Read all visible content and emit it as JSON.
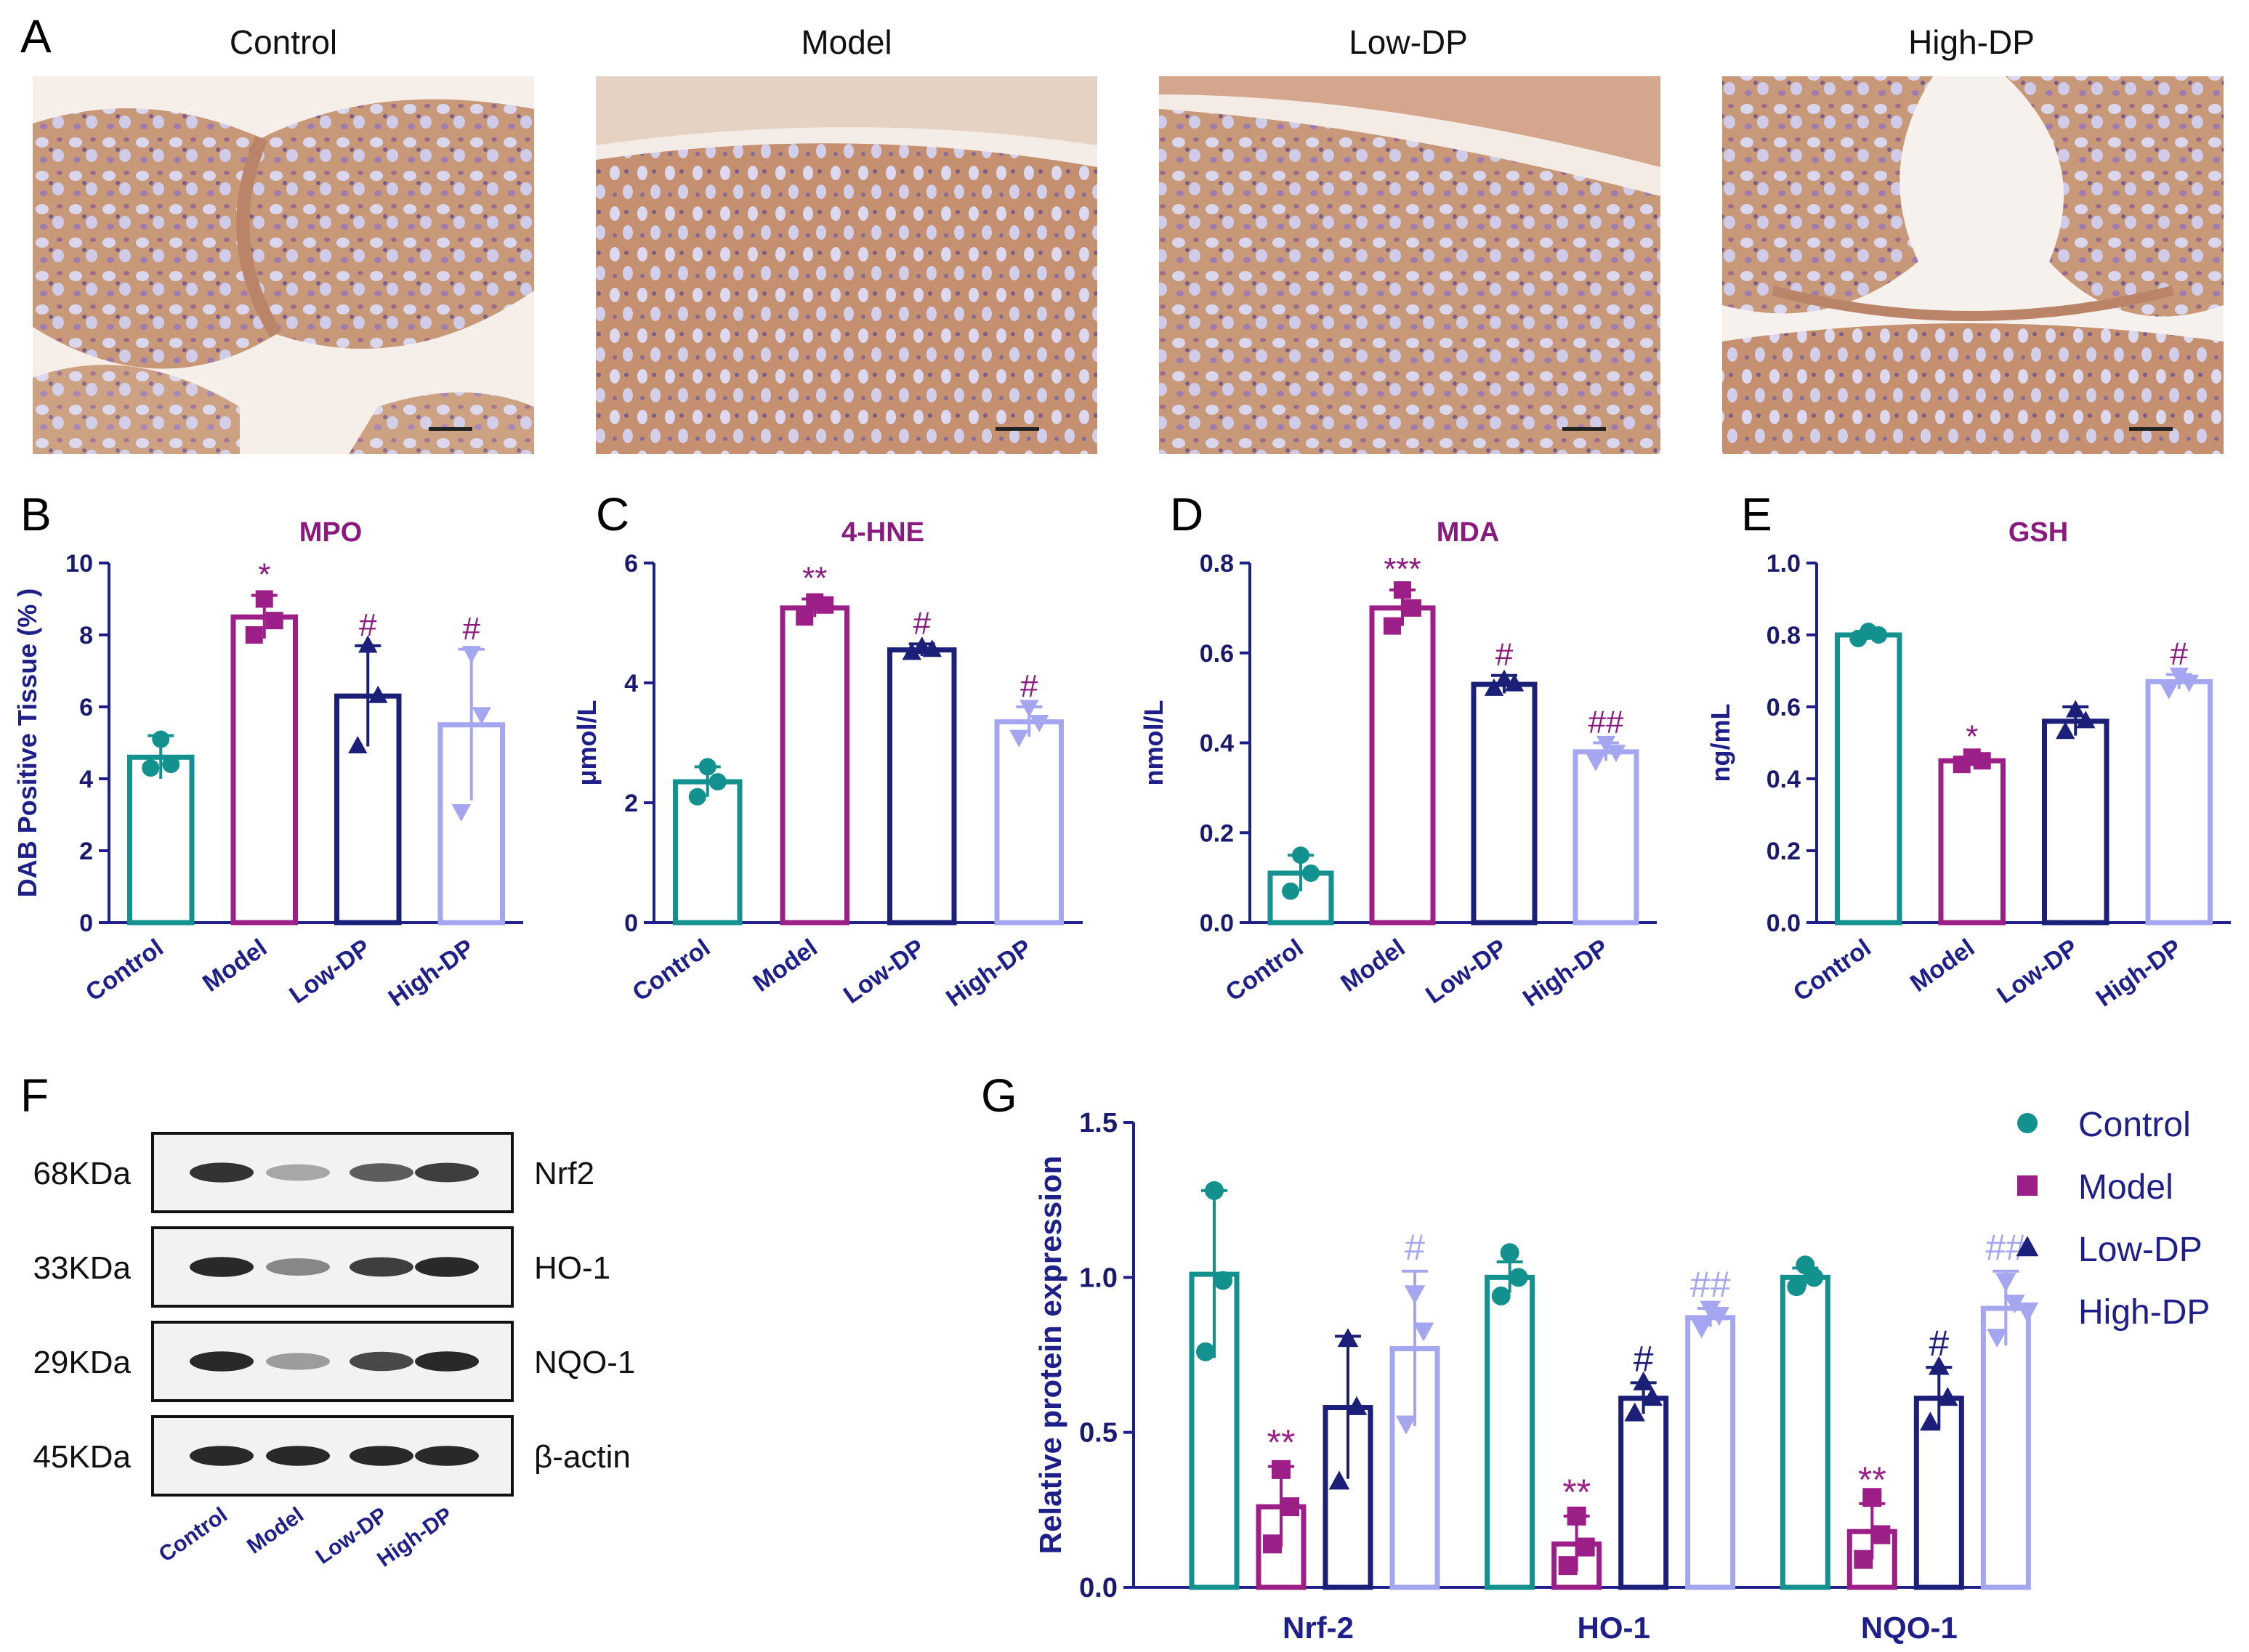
{
  "groups": [
    "Control",
    "Model",
    "Low-DP",
    "High-DP"
  ],
  "colors": {
    "Control": "#12918e",
    "Model": "#9b1f86",
    "Low-DP": "#1c1f78",
    "High-DP": "#a5a6f0",
    "axis": "#1f1f8a",
    "title": "#8b1a7e"
  },
  "panel_letters": [
    "A",
    "B",
    "C",
    "D",
    "E",
    "F",
    "G"
  ],
  "panel_a": {
    "titles": [
      "Control",
      "Model",
      "Low-DP",
      "High-DP"
    ]
  },
  "panel_f": {
    "bands": [
      {
        "kda": "68KDa",
        "protein": "Nrf2",
        "intensity": [
          0.9,
          0.35,
          0.7,
          0.85
        ]
      },
      {
        "kda": "33KDa",
        "protein": "HO-1",
        "intensity": [
          0.95,
          0.5,
          0.85,
          0.95
        ]
      },
      {
        "kda": "29KDa",
        "protein": "NQO-1",
        "intensity": [
          0.95,
          0.4,
          0.8,
          0.95
        ]
      },
      {
        "kda": "45KDa",
        "protein": "β-actin",
        "intensity": [
          0.95,
          0.95,
          0.95,
          0.95
        ]
      }
    ],
    "lane_labels": [
      "Control",
      "Model",
      "Low-DP",
      "High-DP"
    ]
  },
  "chart_data": [
    {
      "type": "bar",
      "panel": "B",
      "title": "MPO",
      "ylabel": "DAB Positive Tissue (% )",
      "categories": [
        "Control",
        "Model",
        "Low-DP",
        "High-DP"
      ],
      "values": [
        4.6,
        8.5,
        6.3,
        5.5
      ],
      "errors": [
        0.6,
        0.6,
        1.4,
        2.1
      ],
      "points": [
        [
          4.3,
          5.1,
          4.4
        ],
        [
          8.0,
          9.0,
          8.4
        ],
        [
          4.9,
          7.7,
          6.3
        ],
        [
          3.1,
          7.5,
          5.8
        ]
      ],
      "ylim": [
        0,
        10
      ],
      "yticks": [
        "0",
        "2",
        "4",
        "6",
        "8",
        "10"
      ],
      "significance": [
        "",
        "*",
        "#",
        "#"
      ]
    },
    {
      "type": "bar",
      "panel": "C",
      "title": "4-HNE",
      "ylabel": "μmol/L",
      "categories": [
        "Control",
        "Model",
        "Low-DP",
        "High-DP"
      ],
      "values": [
        2.35,
        5.25,
        4.55,
        3.35
      ],
      "errors": [
        0.25,
        0.15,
        0.1,
        0.25
      ],
      "points": [
        [
          2.1,
          2.6,
          2.35
        ],
        [
          5.1,
          5.35,
          5.3
        ],
        [
          4.5,
          4.6,
          4.55
        ],
        [
          3.1,
          3.6,
          3.35
        ]
      ],
      "ylim": [
        0,
        6
      ],
      "yticks": [
        "0",
        "2",
        "4",
        "6"
      ],
      "significance": [
        "",
        "**",
        "#",
        "#"
      ]
    },
    {
      "type": "bar",
      "panel": "D",
      "title": "MDA",
      "ylabel": "nmol/L",
      "categories": [
        "Control",
        "Model",
        "Low-DP",
        "High-DP"
      ],
      "values": [
        0.11,
        0.7,
        0.53,
        0.38
      ],
      "errors": [
        0.04,
        0.04,
        0.02,
        0.02
      ],
      "points": [
        [
          0.07,
          0.15,
          0.11
        ],
        [
          0.66,
          0.74,
          0.7
        ],
        [
          0.52,
          0.54,
          0.53
        ],
        [
          0.36,
          0.4,
          0.38
        ]
      ],
      "ylim": [
        0,
        0.8
      ],
      "yticks": [
        "0.0",
        "0.2",
        "0.4",
        "0.6",
        "0.8"
      ],
      "significance": [
        "",
        "***",
        "#",
        "##"
      ]
    },
    {
      "type": "bar",
      "panel": "E",
      "title": "GSH",
      "ylabel": "ng/mL",
      "categories": [
        "Control",
        "Model",
        "Low-DP",
        "High-DP"
      ],
      "values": [
        0.8,
        0.45,
        0.56,
        0.67
      ],
      "errors": [
        0.01,
        0.01,
        0.04,
        0.02
      ],
      "points": [
        [
          0.79,
          0.81,
          0.8
        ],
        [
          0.44,
          0.46,
          0.45
        ],
        [
          0.53,
          0.59,
          0.56
        ],
        [
          0.65,
          0.69,
          0.67
        ]
      ],
      "ylim": [
        0,
        1.0
      ],
      "yticks": [
        "0.0",
        "0.2",
        "0.4",
        "0.6",
        "0.8",
        "1.0"
      ],
      "significance": [
        "",
        "*",
        "",
        "#"
      ]
    },
    {
      "type": "bar",
      "panel": "G",
      "title": "",
      "ylabel": "Relative protein expression",
      "categories": [
        "Nrf-2",
        "HO-1",
        "NQO-1"
      ],
      "ylim": [
        0,
        1.5
      ],
      "yticks": [
        "0.0",
        "0.5",
        "1.0",
        "1.5"
      ],
      "legend_position": "top-right",
      "series": [
        {
          "name": "Control",
          "values": [
            1.01,
            1.0,
            1.0
          ],
          "errors": [
            0.27,
            0.05,
            0.03
          ],
          "points": [
            [
              0.76,
              1.28,
              0.99
            ],
            [
              0.94,
              1.08,
              1.0
            ],
            [
              0.97,
              1.04,
              1.0
            ]
          ],
          "significance": [
            "",
            "",
            ""
          ]
        },
        {
          "name": "Model",
          "values": [
            0.26,
            0.14,
            0.18
          ],
          "errors": [
            0.13,
            0.09,
            0.09
          ],
          "points": [
            [
              0.14,
              0.38,
              0.26
            ],
            [
              0.07,
              0.23,
              0.13
            ],
            [
              0.09,
              0.29,
              0.17
            ]
          ],
          "significance": [
            "**",
            "**",
            "**"
          ]
        },
        {
          "name": "Low-DP",
          "values": [
            0.58,
            0.61,
            0.61
          ],
          "errors": [
            0.23,
            0.05,
            0.1
          ],
          "points": [
            [
              0.34,
              0.8,
              0.58
            ],
            [
              0.56,
              0.66,
              0.61
            ],
            [
              0.53,
              0.71,
              0.61
            ]
          ],
          "significance": [
            "",
            "#",
            "#"
          ]
        },
        {
          "name": "High-DP",
          "values": [
            0.77,
            0.87,
            0.9
          ],
          "errors": [
            0.25,
            0.03,
            0.12
          ],
          "points": [
            [
              0.53,
              0.95,
              0.83
            ],
            [
              0.84,
              0.9,
              0.88
            ],
            [
              0.81,
              0.99,
              0.92
            ]
          ],
          "significance": [
            "#",
            "##",
            "##"
          ]
        }
      ]
    }
  ]
}
